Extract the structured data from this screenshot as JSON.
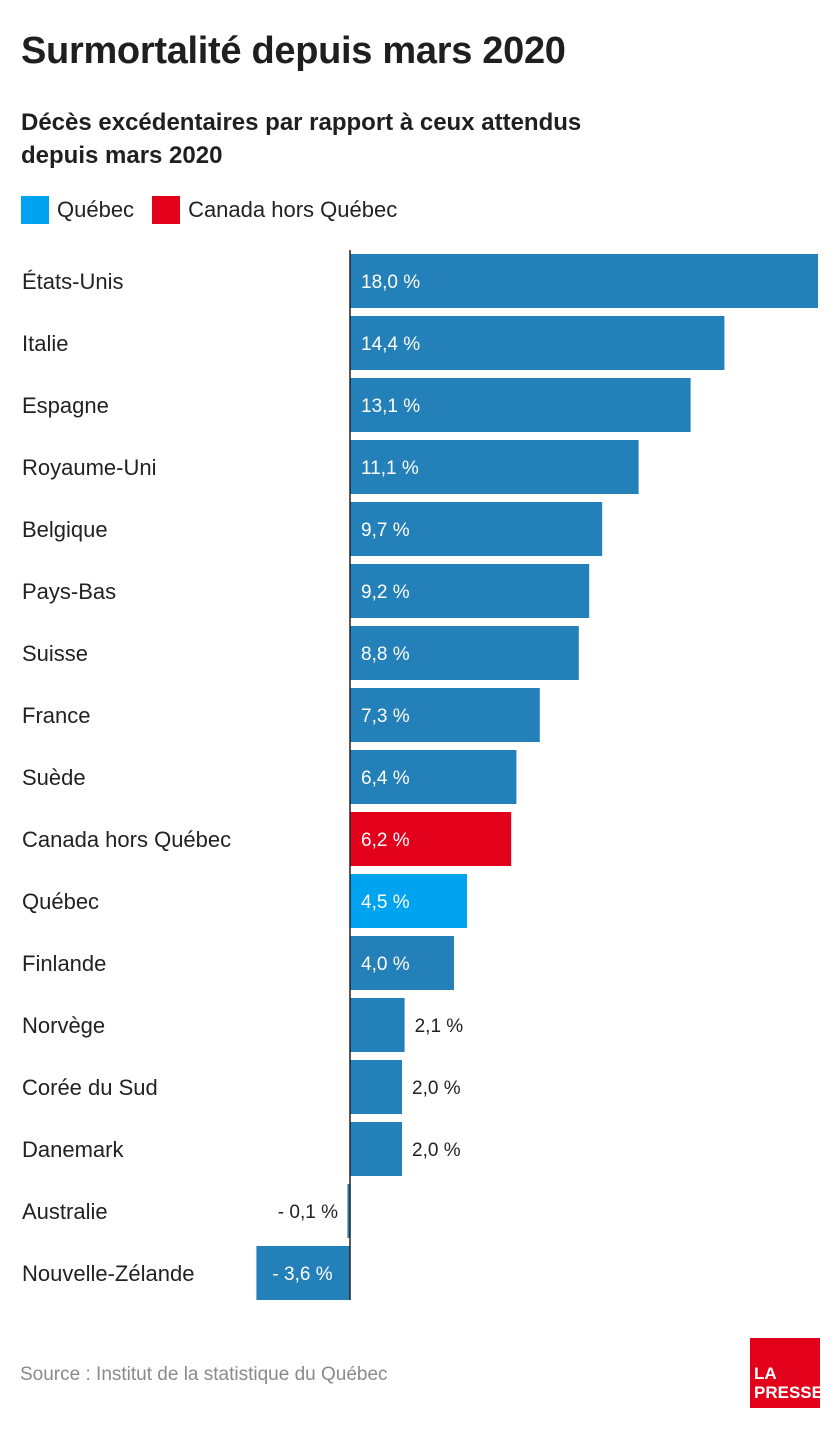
{
  "title": "Surmortalité depuis mars 2020",
  "subtitle": "Décès excédentaires par rapport à ceux attendus depuis mars 2020",
  "legend": [
    {
      "label": "Québec",
      "color": "#00a3f0"
    },
    {
      "label": "Canada hors Québec",
      "color": "#e3001b"
    }
  ],
  "source": "Source : Institut de la statistique du Québec",
  "logo": {
    "line1": "LA",
    "line2": "PRESSE"
  },
  "colors": {
    "default": "#2480b9",
    "quebec": "#00a3f0",
    "canada_hors_quebec": "#e3001b",
    "axis": "#222222"
  },
  "chart_data": {
    "type": "bar",
    "orientation": "horizontal",
    "categories": [
      "États-Unis",
      "Italie",
      "Espagne",
      "Royaume-Uni",
      "Belgique",
      "Pays-Bas",
      "Suisse",
      "France",
      "Suède",
      "Canada hors Québec",
      "Québec",
      "Finlande",
      "Norvège",
      "Corée du Sud",
      "Danemark",
      "Australie",
      "Nouvelle-Zélande"
    ],
    "values": [
      18.0,
      14.4,
      13.1,
      11.1,
      9.7,
      9.2,
      8.8,
      7.3,
      6.4,
      6.2,
      4.5,
      4.0,
      2.1,
      2.0,
      2.0,
      -0.1,
      -3.6
    ],
    "labels": [
      "18,0 %",
      "14,4 %",
      "13,1 %",
      "11,1 %",
      "9,7 %",
      "9,2 %",
      "8,8 %",
      "7,3 %",
      "6,4 %",
      "6,2 %",
      "4,5 %",
      "4,0 %",
      "2,1 %",
      "2,0 %",
      "2,0 %",
      "- 0,1 %",
      "- 3,6 %"
    ],
    "highlight": {
      "Canada hors Québec": "canada_hors_quebec",
      "Québec": "quebec"
    },
    "xlim": [
      -3.6,
      18.0
    ],
    "grid": false,
    "legend_position": "top-left"
  }
}
